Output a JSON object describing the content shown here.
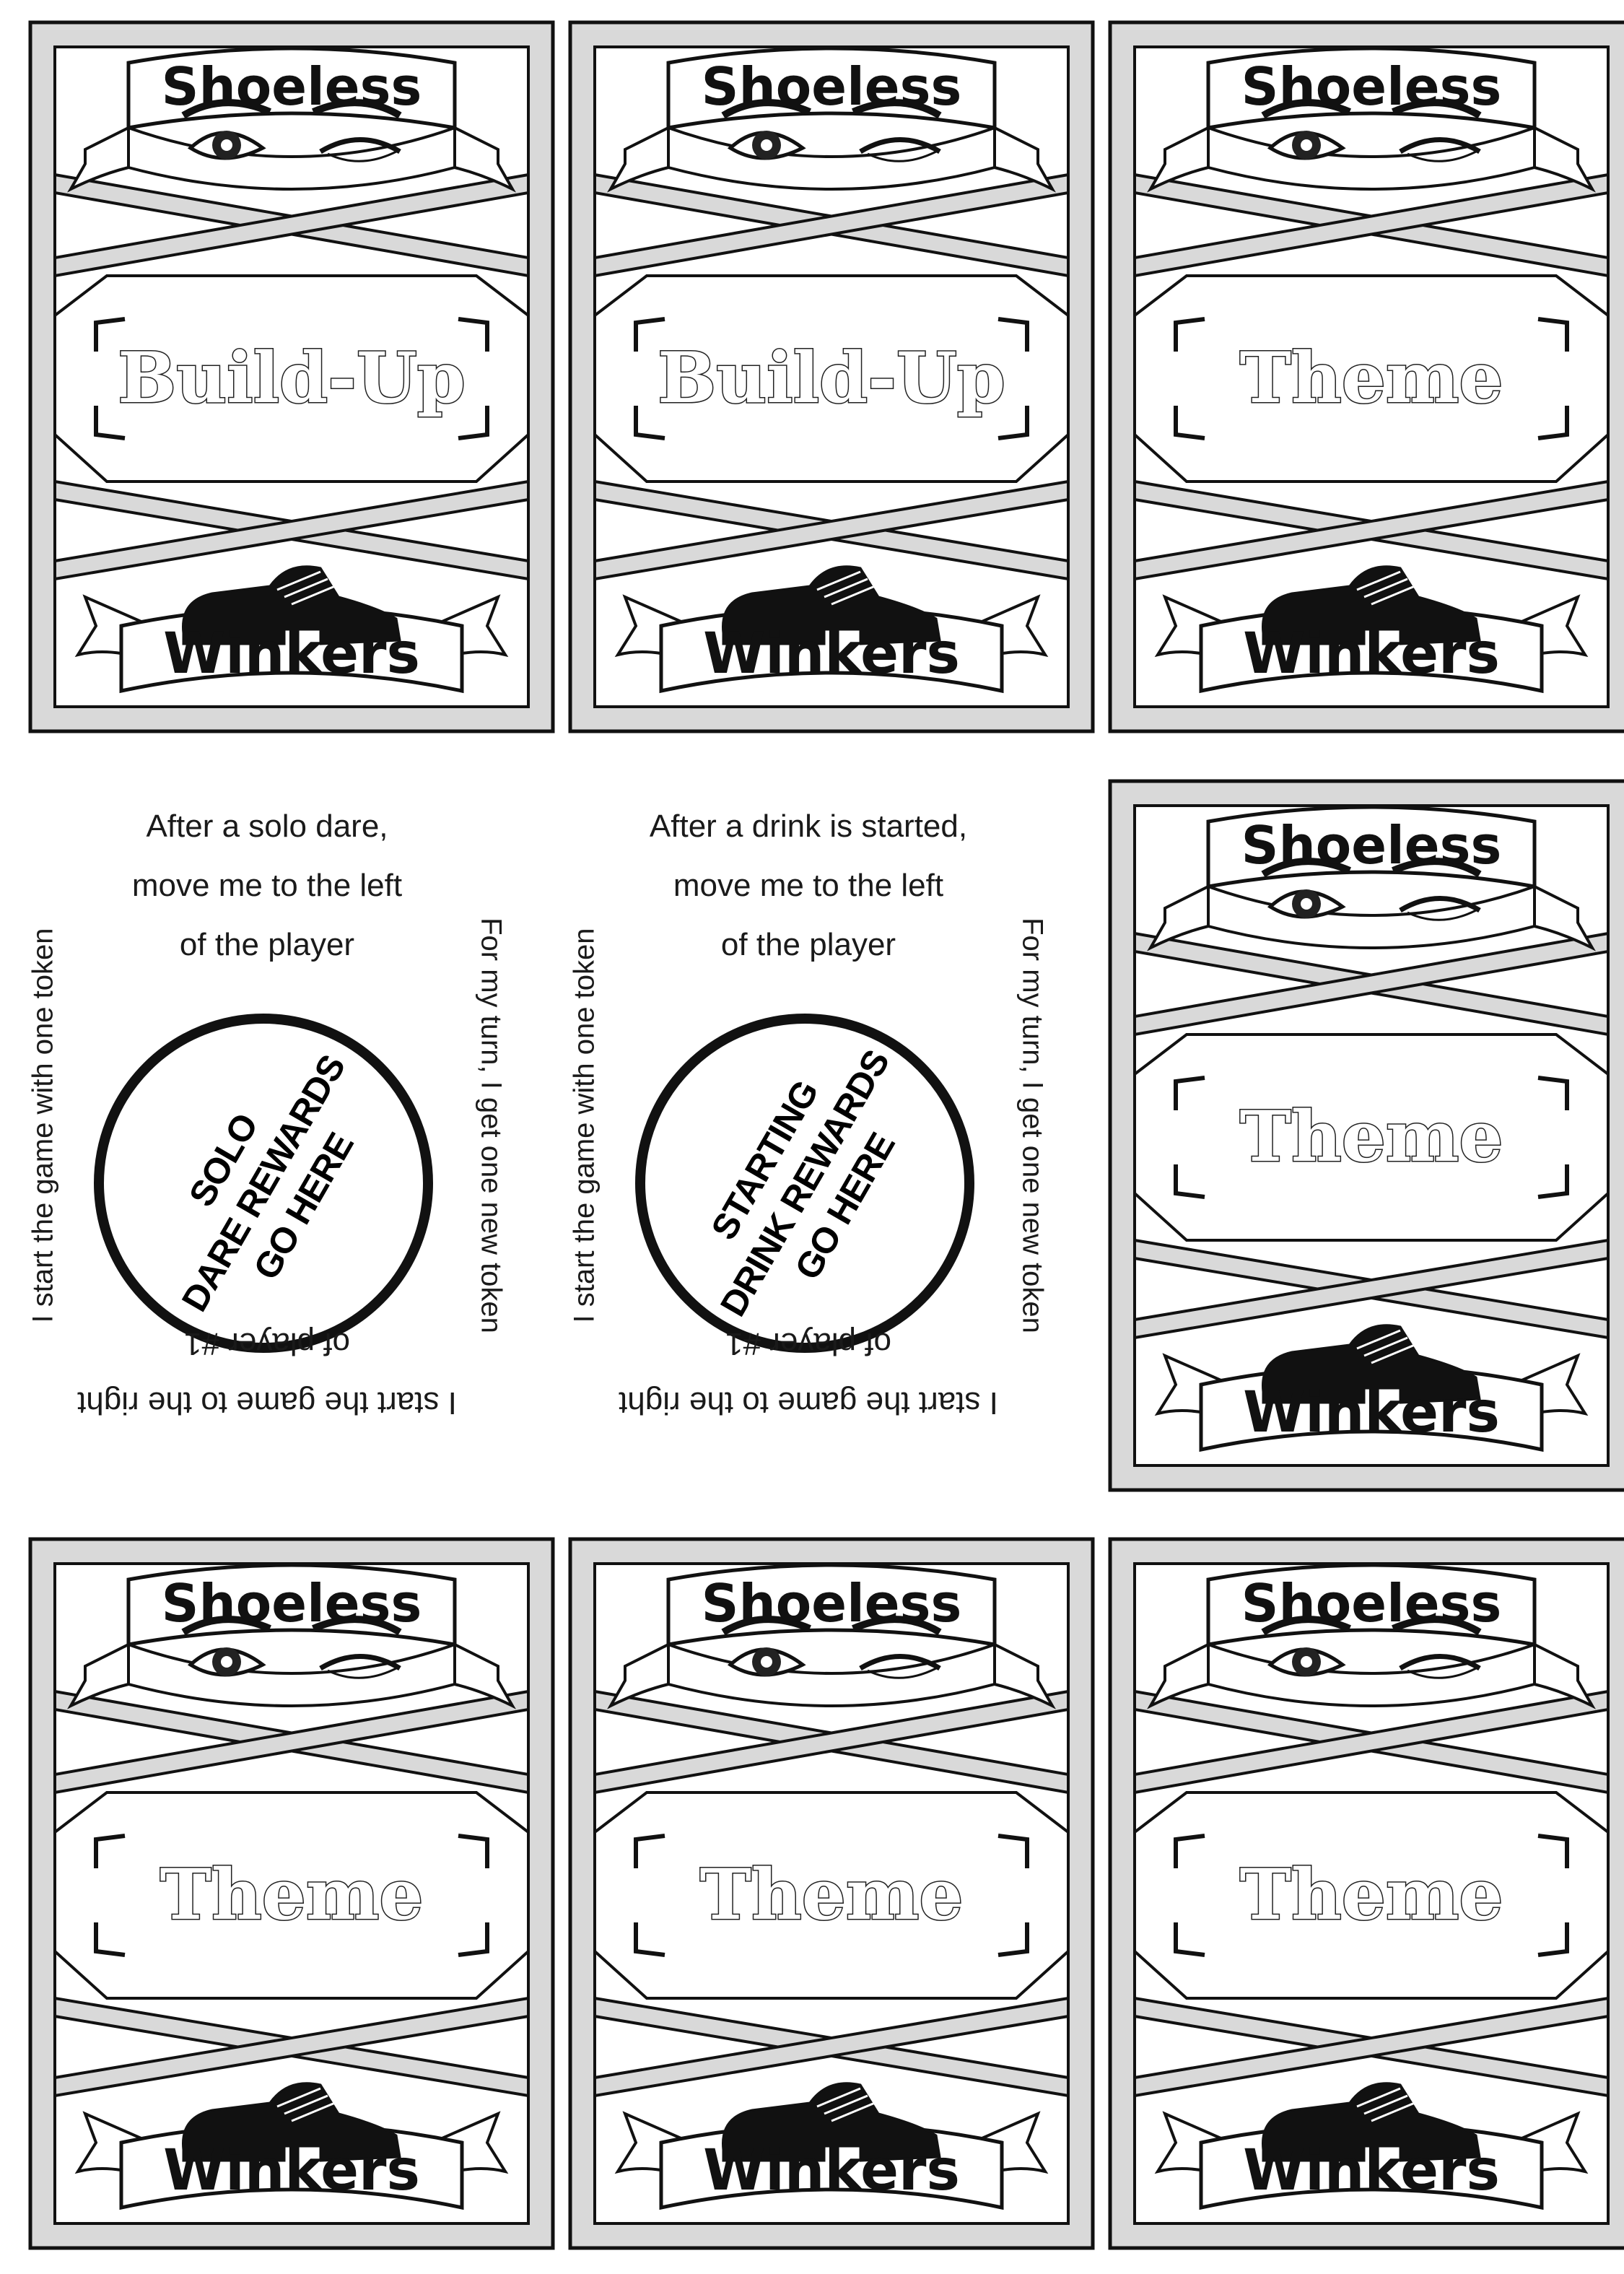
{
  "cards": [
    {
      "id": "card-1",
      "top": "Shoeless",
      "label": "Build-Up",
      "bottom": "Winkers"
    },
    {
      "id": "card-2",
      "top": "Shoeless",
      "label": "Build-Up",
      "bottom": "Winkers"
    },
    {
      "id": "card-3",
      "top": "Shoeless",
      "label": "Theme",
      "bottom": "Winkers"
    },
    {
      "id": "card-4",
      "top": "Shoeless",
      "label": "Theme",
      "bottom": "Winkers"
    },
    {
      "id": "card-5",
      "top": "Shoeless",
      "label": "Theme",
      "bottom": "Winkers"
    },
    {
      "id": "card-6",
      "top": "Shoeless",
      "label": "Theme",
      "bottom": "Winkers"
    },
    {
      "id": "card-7",
      "top": "Shoeless",
      "label": "Theme",
      "bottom": "Winkers"
    }
  ],
  "tokens": [
    {
      "top_lines": [
        "After a solo dare,",
        "move me to the left",
        "of the player"
      ],
      "circle_lines": [
        "SOLO",
        "DARE REWARDS",
        "GO HERE"
      ],
      "left_text": "I start the game with one token",
      "right_text": "For my turn, I get one new token",
      "bottom_lines": [
        "I start the game to the right",
        "of player #1"
      ]
    },
    {
      "top_lines": [
        "After a drink is started,",
        "move me to the left",
        "of the player"
      ],
      "circle_lines": [
        "STARTING",
        "DRINK REWARDS",
        "GO HERE"
      ],
      "left_text": "I start the game with one token",
      "right_text": "For my turn, I get one new token",
      "bottom_lines": [
        "I start the game to the right",
        "of player #1"
      ]
    }
  ],
  "colors": {
    "frame": "#d9d9d9",
    "ink": "#111111",
    "paper": "#ffffff"
  },
  "icons": {
    "eyes": "winking-eyes-icon",
    "shoe": "shoe-icon"
  }
}
